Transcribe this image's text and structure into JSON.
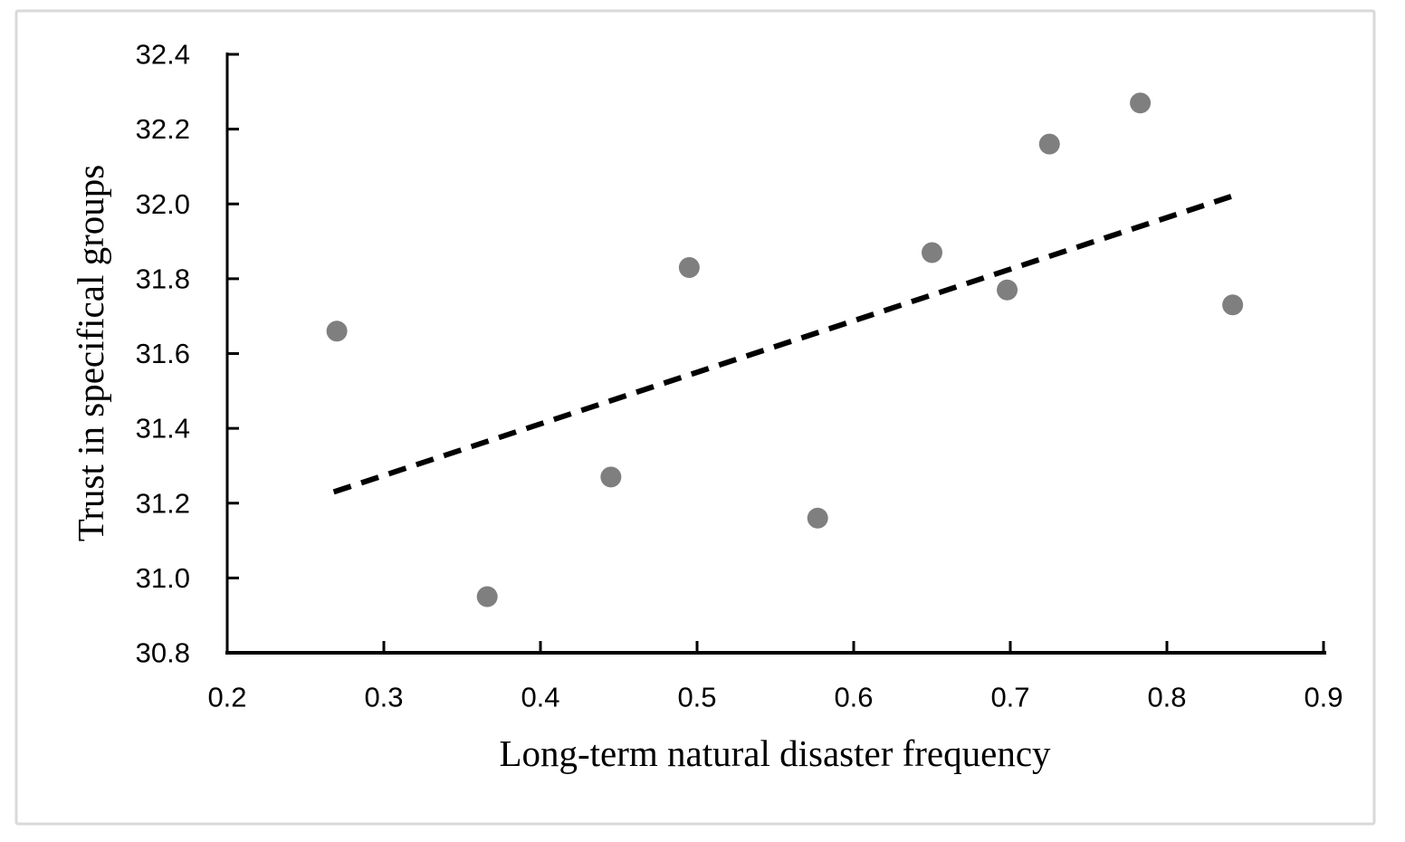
{
  "figure": {
    "background": "#ffffff",
    "frame_border_color": "#d9d9d9"
  },
  "chart_data": {
    "type": "scatter",
    "title": "",
    "xlabel": "Long-term natural disaster frequency",
    "ylabel": "Trust in specifical groups",
    "xlim": [
      0.2,
      0.9
    ],
    "ylim": [
      30.8,
      32.4
    ],
    "xticks": [
      0.2,
      0.3,
      0.4,
      0.5,
      0.6,
      0.7,
      0.8,
      0.9
    ],
    "yticks": [
      30.8,
      31.0,
      31.2,
      31.4,
      31.6,
      31.8,
      32.0,
      32.2,
      32.4
    ],
    "xtick_labels": [
      "0.2",
      "0.3",
      "0.4",
      "0.5",
      "0.6",
      "0.7",
      "0.8",
      "0.9"
    ],
    "ytick_labels": [
      "30.8",
      "31.0",
      "31.2",
      "31.4",
      "31.6",
      "31.8",
      "32.0",
      "32.2",
      "32.4"
    ],
    "grid": false,
    "legend": false,
    "point_color": "#7f7f7f",
    "point_radius_px": 11.5,
    "axis_color": "#000000",
    "points": [
      {
        "x": 0.27,
        "y": 31.66
      },
      {
        "x": 0.366,
        "y": 30.95
      },
      {
        "x": 0.445,
        "y": 31.27
      },
      {
        "x": 0.495,
        "y": 31.83
      },
      {
        "x": 0.577,
        "y": 31.16
      },
      {
        "x": 0.65,
        "y": 31.87
      },
      {
        "x": 0.698,
        "y": 31.77
      },
      {
        "x": 0.725,
        "y": 32.16
      },
      {
        "x": 0.783,
        "y": 32.27
      },
      {
        "x": 0.842,
        "y": 31.73
      }
    ],
    "trendline": {
      "style": "dashed",
      "color": "#000000",
      "x_start": 0.268,
      "y_start": 31.23,
      "x_end": 0.841,
      "y_end": 32.02
    }
  }
}
